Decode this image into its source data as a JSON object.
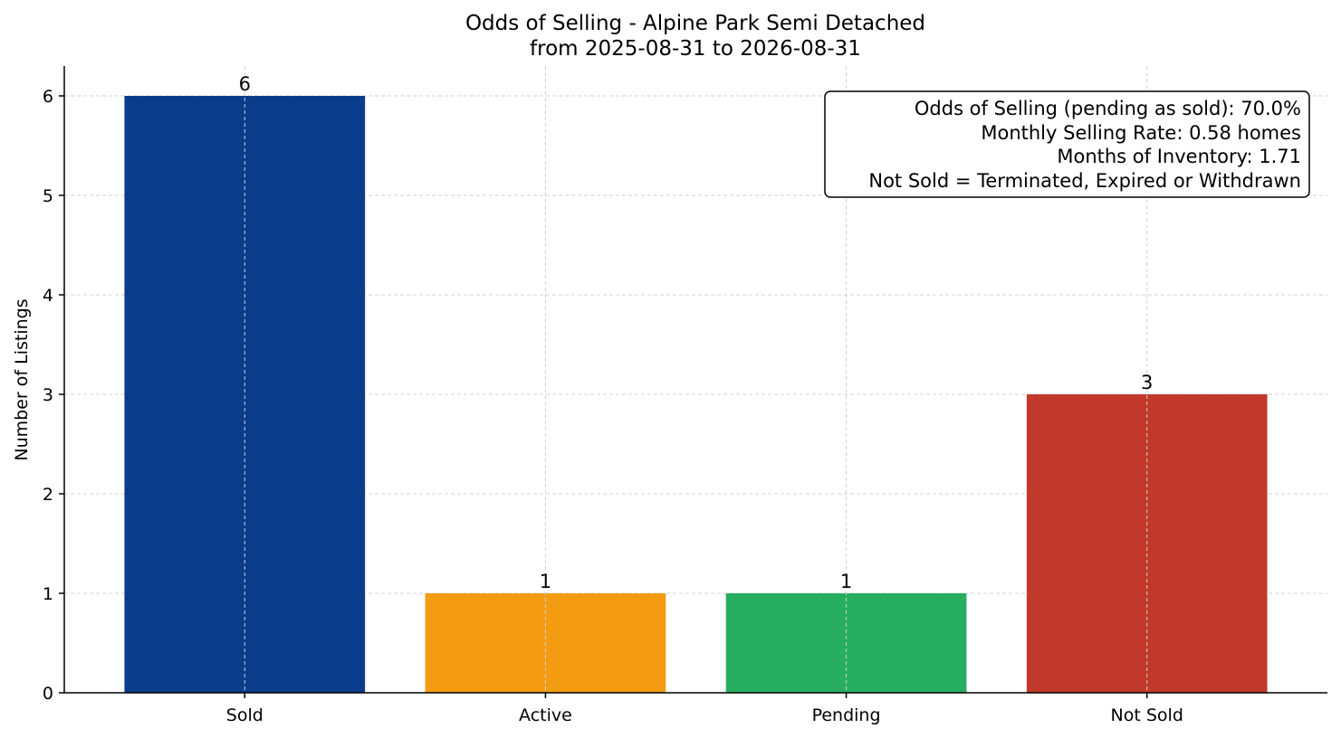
{
  "chart_data": {
    "type": "bar",
    "title": "Odds of Selling - Alpine Park Semi Detached",
    "subtitle": "from 2025-08-31 to 2026-08-31",
    "xlabel": "",
    "ylabel": "Number of Listings",
    "categories": [
      "Sold",
      "Active",
      "Pending",
      "Not Sold"
    ],
    "values": [
      6,
      1,
      1,
      3
    ],
    "colors": [
      "#0b3c8c",
      "#f39c12",
      "#27ae60",
      "#c0392b"
    ],
    "ylim": [
      0,
      6.3
    ],
    "yticks": [
      0,
      1,
      2,
      3,
      4,
      5,
      6
    ],
    "grid": true,
    "data_labels": [
      "6",
      "1",
      "1",
      "3"
    ],
    "annotation": {
      "placement": "top-right",
      "lines": [
        "Odds of Selling (pending as sold): 70.0%",
        "Monthly Selling Rate: 0.58 homes",
        "Months of Inventory: 1.71",
        "Not Sold = Terminated, Expired or Withdrawn"
      ]
    }
  }
}
